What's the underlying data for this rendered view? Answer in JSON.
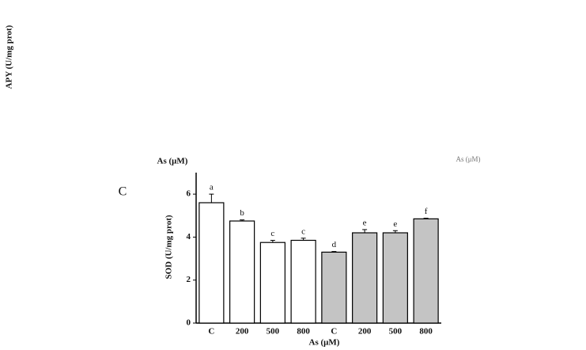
{
  "panel_label": "C",
  "fragments": {
    "top_left_axis_label": "APY (U/mg prot)",
    "top_x_label": "As (μM)",
    "top_right_label": "As (μM)"
  },
  "chart_data": {
    "type": "bar",
    "ylabel": "SOD (U/mg prot)",
    "xlabel": "As (μM)",
    "categories": [
      "C",
      "200",
      "500",
      "800",
      "C",
      "200",
      "500",
      "800"
    ],
    "values": [
      5.6,
      4.75,
      3.75,
      3.85,
      3.3,
      4.2,
      4.2,
      4.85
    ],
    "errors": [
      0.4,
      0.05,
      0.1,
      0.1,
      0.03,
      0.15,
      0.1,
      0.03
    ],
    "value_labels": [
      "a",
      "b",
      "c",
      "c",
      "d",
      "e",
      "e",
      "f"
    ],
    "colors": [
      "#ffffff",
      "#ffffff",
      "#ffffff",
      "#ffffff",
      "#c4c4c4",
      "#c4c4c4",
      "#c4c4c4",
      "#c4c4c4"
    ],
    "ylim": [
      0,
      7
    ],
    "yticks": [
      0,
      2,
      4,
      6
    ]
  }
}
